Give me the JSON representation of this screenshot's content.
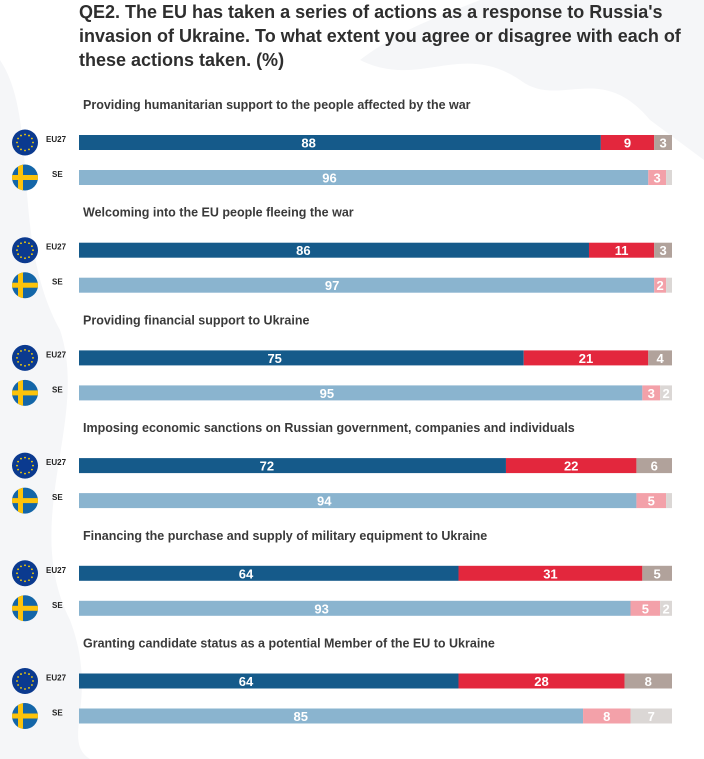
{
  "title": "QE2. The EU has taken a series of actions as a response to Russia's invasion of Ukraine. To what extent you agree or disagree with each of these actions taken. (%)",
  "colors": {
    "eu27_agree": "#155a8a",
    "se_agree": "#8ab4cf",
    "eu27_disagree": "#e3273d",
    "se_disagree": "#f3a1a9",
    "eu27_dk": "#b1a29b",
    "se_dk": "#dbd7d5",
    "label_dark": "#ffffff"
  },
  "chart_data": {
    "type": "bar",
    "orientation": "horizontal",
    "stacked": true,
    "xlim": [
      0,
      100
    ],
    "row_labels": [
      "EU27",
      "SE"
    ],
    "segments": [
      "agree",
      "disagree",
      "dont_know"
    ],
    "groups": [
      {
        "label": "Providing humanitarian support to the people affected by the war",
        "rows": [
          {
            "label": "EU27",
            "values": [
              88,
              9,
              3
            ]
          },
          {
            "label": "SE",
            "values": [
              96,
              3,
              1
            ]
          }
        ]
      },
      {
        "label": "Welcoming into the EU people fleeing the war",
        "rows": [
          {
            "label": "EU27",
            "values": [
              86,
              11,
              3
            ]
          },
          {
            "label": "SE",
            "values": [
              97,
              2,
              1
            ]
          }
        ]
      },
      {
        "label": "Providing financial support to Ukraine",
        "rows": [
          {
            "label": "EU27",
            "values": [
              75,
              21,
              4
            ]
          },
          {
            "label": "SE",
            "values": [
              95,
              3,
              2
            ]
          }
        ]
      },
      {
        "label": "Imposing economic sanctions on Russian government, companies and individuals",
        "rows": [
          {
            "label": "EU27",
            "values": [
              72,
              22,
              6
            ]
          },
          {
            "label": "SE",
            "values": [
              94,
              5,
              1
            ]
          }
        ]
      },
      {
        "label": "Financing the purchase and supply of military equipment to Ukraine",
        "rows": [
          {
            "label": "EU27",
            "values": [
              64,
              31,
              5
            ]
          },
          {
            "label": "SE",
            "values": [
              93,
              5,
              2
            ]
          }
        ]
      },
      {
        "label": "Granting candidate status as a potential Member of the EU to Ukraine",
        "rows": [
          {
            "label": "EU27",
            "values": [
              64,
              28,
              8
            ]
          },
          {
            "label": "SE",
            "values": [
              85,
              8,
              7
            ]
          }
        ]
      }
    ],
    "shown_labels": [
      [
        [
          "88",
          "9",
          "3"
        ],
        [
          "96",
          "3",
          ""
        ]
      ],
      [
        [
          "86",
          "11",
          "3"
        ],
        [
          "97",
          "2",
          ""
        ]
      ],
      [
        [
          "75",
          "21",
          "4"
        ],
        [
          "95",
          "3",
          "2"
        ]
      ],
      [
        [
          "72",
          "22",
          "6"
        ],
        [
          "94",
          "5",
          ""
        ]
      ],
      [
        [
          "64",
          "31",
          "5"
        ],
        [
          "93",
          "5",
          "2"
        ]
      ],
      [
        [
          "64",
          "28",
          "8"
        ],
        [
          "85",
          "8",
          "7"
        ]
      ]
    ]
  }
}
